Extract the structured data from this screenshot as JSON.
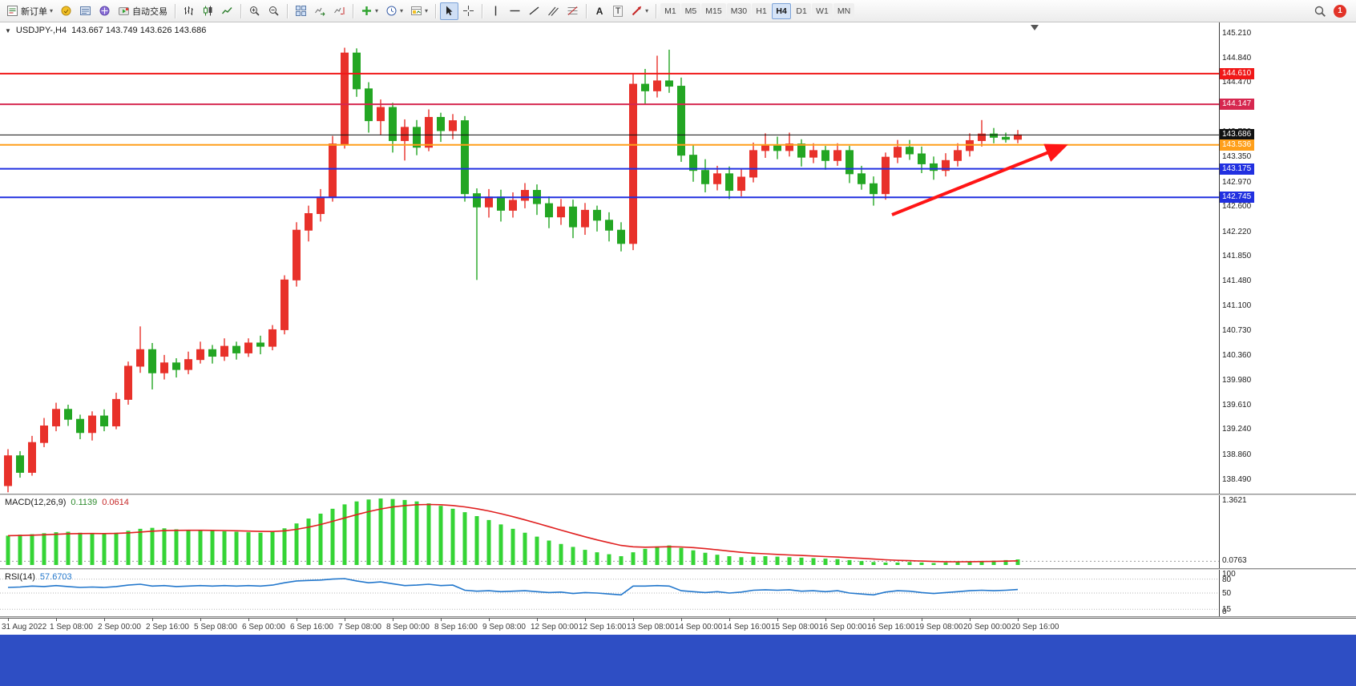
{
  "toolbar": {
    "new_order_label": "新订单",
    "autotrading_label": "自动交易",
    "text_tool_label": "A",
    "label_tool_label": "T",
    "timeframes": [
      "M1",
      "M5",
      "M15",
      "M30",
      "H1",
      "H4",
      "D1",
      "W1",
      "MN"
    ],
    "active_timeframe": "H4",
    "notification_count": "1",
    "icons": [
      "new-order",
      "market-watch",
      "data-window",
      "navigator",
      "autotrading",
      "bar-chart",
      "candlestick-chart",
      "line-chart",
      "zoom-in",
      "zoom-out",
      "tile-windows",
      "auto-scroll",
      "chart-shift",
      "add-indicator",
      "periods-clock",
      "templates",
      "cursor",
      "crosshair",
      "vertical-line",
      "horizontal-line",
      "trendline",
      "equidistant-channel",
      "fibonacci",
      "text",
      "text-label",
      "arrows",
      "search",
      "notification"
    ]
  },
  "chart": {
    "symbol_period": "USDJPY-,H4",
    "ohlc_text": "143.667 143.749 143.626 143.686"
  },
  "colors": {
    "up": "#e8312a",
    "down": "#23a623",
    "macd_hist": "#35d435",
    "macd_signal": "#e02020",
    "rsi_line": "#2277cc",
    "bottom_strip": "#2e4ec4"
  },
  "chart_data": {
    "type": "candlestick",
    "symbol": "USDJPY-",
    "timeframe": "H4",
    "ylim": [
      138.4,
      145.26
    ],
    "price_axis_labels": [
      "145.210",
      "144.840",
      "144.470",
      "144.100",
      "143.730",
      "143.350",
      "142.970",
      "142.600",
      "142.220",
      "141.850",
      "141.480",
      "141.100",
      "140.730",
      "140.360",
      "139.980",
      "139.610",
      "139.240",
      "138.860",
      "138.490"
    ],
    "lines": [
      {
        "price": 144.61,
        "label": "144.610",
        "color": "#f01818",
        "width": 2
      },
      {
        "price": 144.147,
        "label": "144.147",
        "color": "#d6274f",
        "width": 2
      },
      {
        "price": 143.686,
        "label": "143.686",
        "color": "#111111",
        "width": 1
      },
      {
        "price": 143.536,
        "label": "143.536",
        "color": "#ff9f1a",
        "width": 2
      },
      {
        "price": 143.175,
        "label": "143.175",
        "color": "#2130e0",
        "width": 2
      },
      {
        "price": 142.745,
        "label": "142.745",
        "color": "#2130e0",
        "width": 2
      }
    ],
    "time_labels": [
      "31 Aug 2022",
      "1 Sep 08:00",
      "2 Sep 00:00",
      "2 Sep 16:00",
      "5 Sep 08:00",
      "6 Sep 00:00",
      "6 Sep 16:00",
      "7 Sep 08:00",
      "8 Sep 00:00",
      "8 Sep 16:00",
      "9 Sep 08:00",
      "12 Sep 00:00",
      "12 Sep 16:00",
      "13 Sep 08:00",
      "14 Sep 00:00",
      "14 Sep 16:00",
      "15 Sep 08:00",
      "16 Sep 00:00",
      "16 Sep 16:00",
      "19 Sep 08:00",
      "20 Sep 00:00",
      "20 Sep 16:00"
    ],
    "candles": [
      [
        138.4,
        138.95,
        138.3,
        138.85
      ],
      [
        138.85,
        138.92,
        138.52,
        138.6
      ],
      [
        138.6,
        139.15,
        138.55,
        139.05
      ],
      [
        139.05,
        139.42,
        138.98,
        139.3
      ],
      [
        139.3,
        139.65,
        139.22,
        139.55
      ],
      [
        139.55,
        139.62,
        139.3,
        139.4
      ],
      [
        139.4,
        139.47,
        139.1,
        139.2
      ],
      [
        139.2,
        139.52,
        139.08,
        139.45
      ],
      [
        139.45,
        139.55,
        139.22,
        139.3
      ],
      [
        139.3,
        139.8,
        139.25,
        139.7
      ],
      [
        139.7,
        140.27,
        139.62,
        140.2
      ],
      [
        140.2,
        140.8,
        140.1,
        140.45
      ],
      [
        140.45,
        140.55,
        139.85,
        140.1
      ],
      [
        140.1,
        140.37,
        140.0,
        140.25
      ],
      [
        140.25,
        140.32,
        140.03,
        140.15
      ],
      [
        140.15,
        140.42,
        140.08,
        140.3
      ],
      [
        140.3,
        140.57,
        140.24,
        140.45
      ],
      [
        140.45,
        140.52,
        140.24,
        140.35
      ],
      [
        140.35,
        140.62,
        140.28,
        140.5
      ],
      [
        140.5,
        140.57,
        140.3,
        140.4
      ],
      [
        140.4,
        140.62,
        140.34,
        140.55
      ],
      [
        140.55,
        140.66,
        140.38,
        140.5
      ],
      [
        140.5,
        140.82,
        140.44,
        140.75
      ],
      [
        140.75,
        141.57,
        140.68,
        141.5
      ],
      [
        141.5,
        142.37,
        141.4,
        142.25
      ],
      [
        142.25,
        142.62,
        142.08,
        142.5
      ],
      [
        142.5,
        142.87,
        142.38,
        142.75
      ],
      [
        142.75,
        143.67,
        142.68,
        143.55
      ],
      [
        143.55,
        145.0,
        143.48,
        144.92
      ],
      [
        144.92,
        144.99,
        144.26,
        144.38
      ],
      [
        144.38,
        144.48,
        143.72,
        143.9
      ],
      [
        143.9,
        144.22,
        143.68,
        144.1
      ],
      [
        144.1,
        144.17,
        143.42,
        143.6
      ],
      [
        143.6,
        143.92,
        143.3,
        143.8
      ],
      [
        143.8,
        143.91,
        143.38,
        143.5
      ],
      [
        143.5,
        144.07,
        143.44,
        143.95
      ],
      [
        143.95,
        144.02,
        143.58,
        143.75
      ],
      [
        143.75,
        144.0,
        143.62,
        143.9
      ],
      [
        143.9,
        143.97,
        142.68,
        142.8
      ],
      [
        142.8,
        142.88,
        141.5,
        142.6
      ],
      [
        142.6,
        142.87,
        142.44,
        142.75
      ],
      [
        142.75,
        142.86,
        142.38,
        142.55
      ],
      [
        142.55,
        142.82,
        142.44,
        142.7
      ],
      [
        142.7,
        142.96,
        142.58,
        142.85
      ],
      [
        142.85,
        142.94,
        142.48,
        142.65
      ],
      [
        142.65,
        142.76,
        142.28,
        142.45
      ],
      [
        142.45,
        142.72,
        142.33,
        142.6
      ],
      [
        142.6,
        142.71,
        142.13,
        142.3
      ],
      [
        142.3,
        142.66,
        142.18,
        142.55
      ],
      [
        142.55,
        142.62,
        142.23,
        142.4
      ],
      [
        142.4,
        142.52,
        142.08,
        142.25
      ],
      [
        142.25,
        142.37,
        141.93,
        142.05
      ],
      [
        142.05,
        144.62,
        141.95,
        144.45
      ],
      [
        144.45,
        144.68,
        144.15,
        144.35
      ],
      [
        144.35,
        144.88,
        144.25,
        144.5
      ],
      [
        144.5,
        144.97,
        144.32,
        144.42
      ],
      [
        144.42,
        144.55,
        143.28,
        143.38
      ],
      [
        143.38,
        143.53,
        142.98,
        143.15
      ],
      [
        143.15,
        143.32,
        142.82,
        142.95
      ],
      [
        142.95,
        143.22,
        142.85,
        143.1
      ],
      [
        143.1,
        143.21,
        142.72,
        142.85
      ],
      [
        142.85,
        143.17,
        142.76,
        143.05
      ],
      [
        143.05,
        143.57,
        142.97,
        143.45
      ],
      [
        143.45,
        143.71,
        143.34,
        143.52
      ],
      [
        143.52,
        143.66,
        143.32,
        143.45
      ],
      [
        143.45,
        143.72,
        143.36,
        143.55
      ],
      [
        143.55,
        143.62,
        143.21,
        143.35
      ],
      [
        143.35,
        143.56,
        143.26,
        143.45
      ],
      [
        143.45,
        143.52,
        143.16,
        143.3
      ],
      [
        143.3,
        143.56,
        143.22,
        143.45
      ],
      [
        143.45,
        143.52,
        142.96,
        143.1
      ],
      [
        143.1,
        143.22,
        142.86,
        142.95
      ],
      [
        142.95,
        143.06,
        142.62,
        142.8
      ],
      [
        142.8,
        143.42,
        142.71,
        143.35
      ],
      [
        143.35,
        143.61,
        143.26,
        143.5
      ],
      [
        143.5,
        143.61,
        143.31,
        143.4
      ],
      [
        143.4,
        143.51,
        143.11,
        143.25
      ],
      [
        143.25,
        143.36,
        143.01,
        143.15
      ],
      [
        143.15,
        143.41,
        143.06,
        143.3
      ],
      [
        143.3,
        143.56,
        143.21,
        143.45
      ],
      [
        143.45,
        143.71,
        143.36,
        143.6
      ],
      [
        143.6,
        143.91,
        143.51,
        143.7
      ],
      [
        143.7,
        143.79,
        143.56,
        143.65
      ],
      [
        143.65,
        143.72,
        143.57,
        143.62
      ],
      [
        143.62,
        143.76,
        143.56,
        143.686
      ]
    ],
    "annotations": [
      {
        "type": "arrow",
        "from": [
          1113,
          240
        ],
        "to": [
          1326,
          155
        ],
        "color": "#ff1515",
        "width": 4
      }
    ],
    "indicators": {
      "macd": {
        "label": "MACD(12,26,9)",
        "value_text": "0.1139",
        "signal_text": "0.0614",
        "axis_max_label": "1.3621",
        "axis_level_label": "0.0763",
        "axis_level_value": 0.0763,
        "values": [
          0.6,
          0.62,
          0.63,
          0.65,
          0.67,
          0.68,
          0.66,
          0.65,
          0.64,
          0.66,
          0.7,
          0.74,
          0.76,
          0.75,
          0.73,
          0.72,
          0.71,
          0.7,
          0.69,
          0.68,
          0.67,
          0.66,
          0.68,
          0.75,
          0.85,
          0.95,
          1.05,
          1.15,
          1.24,
          1.3,
          1.34,
          1.36,
          1.35,
          1.33,
          1.3,
          1.26,
          1.21,
          1.15,
          1.08,
          1.0,
          0.92,
          0.83,
          0.74,
          0.66,
          0.58,
          0.5,
          0.43,
          0.37,
          0.31,
          0.26,
          0.22,
          0.18,
          0.26,
          0.33,
          0.38,
          0.4,
          0.35,
          0.3,
          0.25,
          0.21,
          0.18,
          0.16,
          0.17,
          0.18,
          0.17,
          0.16,
          0.15,
          0.14,
          0.13,
          0.12,
          0.1,
          0.08,
          0.06,
          0.05,
          0.05,
          0.06,
          0.05,
          0.04,
          0.05,
          0.06,
          0.07,
          0.08,
          0.09,
          0.1,
          0.1139
        ]
      },
      "rsi": {
        "label": "RSI(14)",
        "value_text": "57.6703",
        "axis_labels": [
          "100",
          "80",
          "50",
          "15",
          "0"
        ],
        "levels": [
          80,
          50,
          15
        ],
        "values": [
          62,
          63,
          65,
          64,
          66,
          64,
          62,
          63,
          62,
          64,
          67,
          69,
          65,
          66,
          64,
          65,
          66,
          65,
          66,
          65,
          66,
          65,
          67,
          72,
          76,
          77,
          78,
          80,
          81,
          76,
          72,
          74,
          70,
          66,
          67,
          69,
          66,
          67,
          56,
          54,
          55,
          53,
          54,
          55,
          53,
          51,
          52,
          49,
          51,
          50,
          48,
          46,
          65,
          65,
          66,
          65,
          55,
          53,
          51,
          53,
          50,
          52,
          56,
          57,
          56,
          57,
          54,
          55,
          53,
          55,
          50,
          48,
          46,
          52,
          55,
          54,
          51,
          49,
          51,
          53,
          55,
          56,
          55,
          56,
          57.67
        ]
      }
    }
  }
}
